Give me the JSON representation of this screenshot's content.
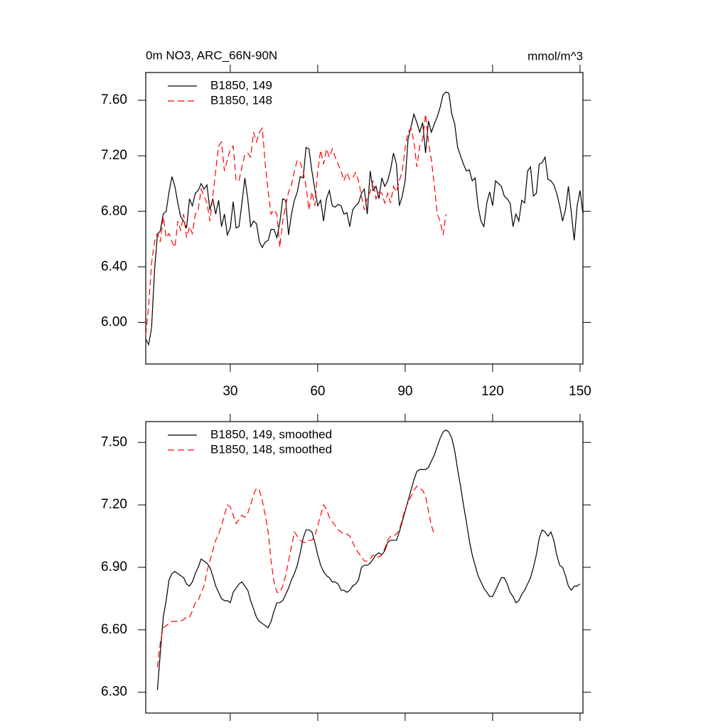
{
  "chart_data": [
    {
      "type": "line",
      "title": "0m NO3, ARC_66N-90N",
      "units": "mmol/m^3",
      "xlim": [
        1,
        151
      ],
      "xticks": [
        30,
        60,
        90,
        120,
        150
      ],
      "xtick_labels": true,
      "ylim": [
        5.7,
        7.8
      ],
      "yticks": [
        {
          "value": 6.0,
          "label": "6.00"
        },
        {
          "value": 6.4,
          "label": "6.40"
        },
        {
          "value": 6.8,
          "label": "6.80"
        },
        {
          "value": 7.2,
          "label": "7.20"
        },
        {
          "value": 7.6,
          "label": "7.60"
        }
      ],
      "grid": false,
      "legend": "upper left",
      "x": [
        1,
        2,
        3,
        4,
        5,
        6,
        7,
        8,
        9,
        10,
        11,
        12,
        13,
        14,
        15,
        16,
        17,
        18,
        19,
        20,
        21,
        22,
        23,
        24,
        25,
        26,
        27,
        28,
        29,
        30,
        31,
        32,
        33,
        34,
        35,
        36,
        37,
        38,
        39,
        40,
        41,
        42,
        43,
        44,
        45,
        46,
        47,
        48,
        49,
        50,
        51,
        52,
        53,
        54,
        55,
        56,
        57,
        58,
        59,
        60,
        61,
        62,
        63,
        64,
        65,
        66,
        67,
        68,
        69,
        70,
        71,
        72,
        73,
        74,
        75,
        76,
        77,
        78,
        79,
        80,
        81,
        82,
        83,
        84,
        85,
        86,
        87,
        88,
        89,
        90,
        91,
        92,
        93,
        94,
        95,
        96,
        97,
        98,
        99,
        100,
        101,
        102,
        103,
        104,
        105,
        106,
        107,
        108,
        109,
        110,
        111,
        112,
        113,
        114,
        115,
        116,
        117,
        118,
        119,
        120,
        121,
        122,
        123,
        124,
        125,
        126,
        127,
        128,
        129,
        130,
        131,
        132,
        133,
        134,
        135,
        136,
        137,
        138,
        139,
        140,
        141,
        142,
        143,
        144,
        145,
        146,
        147,
        148,
        149,
        150,
        151
      ],
      "series": [
        {
          "name": "B1850, 149",
          "color": "#000000",
          "line_style": "solid",
          "values": [
            5.88,
            5.84,
            5.96,
            6.37,
            6.63,
            6.66,
            6.78,
            6.8,
            6.94,
            7.05,
            6.98,
            6.86,
            6.76,
            6.73,
            6.68,
            6.89,
            6.84,
            6.93,
            6.95,
            7.0,
            6.96,
            6.99,
            6.81,
            6.89,
            6.78,
            6.88,
            6.69,
            6.78,
            6.63,
            6.68,
            6.87,
            6.68,
            6.69,
            6.86,
            7.04,
            6.89,
            6.69,
            6.73,
            6.71,
            6.58,
            6.54,
            6.58,
            6.59,
            6.67,
            6.67,
            6.61,
            6.72,
            6.89,
            6.88,
            6.63,
            6.78,
            6.88,
            6.94,
            7.05,
            7.04,
            7.26,
            7.25,
            7.09,
            6.96,
            6.84,
            6.88,
            6.73,
            6.89,
            6.95,
            6.84,
            6.83,
            6.85,
            6.84,
            6.78,
            6.79,
            6.69,
            6.81,
            6.84,
            6.86,
            6.93,
            6.96,
            6.78,
            7.09,
            6.95,
            6.98,
            6.89,
            7.04,
            6.98,
            7.02,
            7.1,
            7.22,
            7.14,
            6.84,
            6.91,
            7.02,
            7.32,
            7.41,
            7.5,
            7.44,
            7.37,
            7.44,
            7.22,
            7.45,
            7.37,
            7.43,
            7.48,
            7.55,
            7.64,
            7.66,
            7.65,
            7.5,
            7.43,
            7.26,
            7.2,
            7.14,
            7.09,
            7.1,
            7.02,
            7.04,
            6.84,
            6.73,
            6.69,
            6.86,
            6.94,
            6.84,
            7.02,
            7.0,
            6.98,
            6.91,
            6.89,
            6.86,
            6.69,
            6.78,
            6.73,
            6.88,
            6.86,
            7.09,
            7.12,
            6.91,
            6.93,
            7.14,
            7.15,
            7.19,
            7.03,
            7.02,
            6.99,
            6.93,
            6.84,
            6.73,
            6.81,
            6.98,
            6.79,
            6.59,
            6.84,
            6.95,
            6.78
          ]
        },
        {
          "name": "B1850, 148",
          "color": "#ff0000",
          "line_style": "dashed",
          "values": [
            5.91,
            6.12,
            6.43,
            6.58,
            6.64,
            6.58,
            6.76,
            6.61,
            6.64,
            6.58,
            6.54,
            6.73,
            6.66,
            6.78,
            6.61,
            6.69,
            6.64,
            6.78,
            6.81,
            6.96,
            6.91,
            6.86,
            6.73,
            6.91,
            7.09,
            7.27,
            7.3,
            7.09,
            7.17,
            7.25,
            7.27,
            7.02,
            7.02,
            7.12,
            7.21,
            7.22,
            7.19,
            7.37,
            7.3,
            7.37,
            7.4,
            7.14,
            6.94,
            6.78,
            6.81,
            6.78,
            6.54,
            6.73,
            6.84,
            6.94,
            6.99,
            7.09,
            7.17,
            7.15,
            7.09,
            6.98,
            6.81,
            6.94,
            6.84,
            7.09,
            7.24,
            7.14,
            7.25,
            7.19,
            7.25,
            7.19,
            7.14,
            7.09,
            7.02,
            7.08,
            7.03,
            7.04,
            7.08,
            7.02,
            6.91,
            6.81,
            6.9,
            6.94,
            7.02,
            6.89,
            6.94,
            6.93,
            6.86,
            6.93,
            6.86,
            6.98,
            6.94,
            7.02,
            7.09,
            7.26,
            7.37,
            7.4,
            7.3,
            7.12,
            7.27,
            7.32,
            7.5,
            7.3,
            7.17,
            6.99,
            6.78,
            6.73,
            6.63,
            6.78,
            null,
            null,
            null,
            null,
            null,
            null,
            null,
            null,
            null,
            null,
            null,
            null,
            null,
            null,
            null,
            null,
            null,
            null,
            null,
            null,
            null,
            null,
            null,
            null,
            null,
            null,
            null,
            null,
            null,
            null,
            null,
            null,
            null,
            null,
            null,
            null,
            null,
            null,
            null,
            null,
            null,
            null,
            null,
            null,
            null,
            null,
            null
          ]
        }
      ]
    },
    {
      "type": "line",
      "xlim": [
        1,
        151
      ],
      "xticks": [
        30,
        60,
        90,
        120,
        150
      ],
      "xtick_labels": false,
      "ylim": [
        6.2,
        7.6
      ],
      "yticks": [
        {
          "value": 6.3,
          "label": "6.30"
        },
        {
          "value": 6.6,
          "label": "6.60"
        },
        {
          "value": 6.9,
          "label": "6.90"
        },
        {
          "value": 7.2,
          "label": "7.20"
        },
        {
          "value": 7.5,
          "label": "7.50"
        }
      ],
      "grid": false,
      "legend": "upper left",
      "x": [
        1,
        2,
        3,
        4,
        5,
        6,
        7,
        8,
        9,
        10,
        11,
        12,
        13,
        14,
        15,
        16,
        17,
        18,
        19,
        20,
        21,
        22,
        23,
        24,
        25,
        26,
        27,
        28,
        29,
        30,
        31,
        32,
        33,
        34,
        35,
        36,
        37,
        38,
        39,
        40,
        41,
        42,
        43,
        44,
        45,
        46,
        47,
        48,
        49,
        50,
        51,
        52,
        53,
        54,
        55,
        56,
        57,
        58,
        59,
        60,
        61,
        62,
        63,
        64,
        65,
        66,
        67,
        68,
        69,
        70,
        71,
        72,
        73,
        74,
        75,
        76,
        77,
        78,
        79,
        80,
        81,
        82,
        83,
        84,
        85,
        86,
        87,
        88,
        89,
        90,
        91,
        92,
        93,
        94,
        95,
        96,
        97,
        98,
        99,
        100,
        101,
        102,
        103,
        104,
        105,
        106,
        107,
        108,
        109,
        110,
        111,
        112,
        113,
        114,
        115,
        116,
        117,
        118,
        119,
        120,
        121,
        122,
        123,
        124,
        125,
        126,
        127,
        128,
        129,
        130,
        131,
        132,
        133,
        134,
        135,
        136,
        137,
        138,
        139,
        140,
        141,
        142,
        143,
        144,
        145,
        146,
        147,
        148,
        149,
        150,
        151
      ],
      "series": [
        {
          "name": "B1850, 149, smoothed",
          "color": "#000000",
          "line_style": "solid",
          "values": [
            null,
            null,
            null,
            null,
            6.31,
            6.49,
            6.66,
            6.74,
            6.84,
            6.87,
            6.88,
            6.87,
            6.86,
            6.85,
            6.82,
            6.81,
            6.83,
            6.87,
            6.9,
            6.94,
            6.93,
            6.92,
            6.9,
            6.86,
            6.81,
            6.78,
            6.75,
            6.74,
            6.74,
            6.73,
            6.78,
            6.8,
            6.82,
            6.83,
            6.81,
            6.79,
            6.74,
            6.7,
            6.66,
            6.64,
            6.63,
            6.62,
            6.61,
            6.64,
            6.69,
            6.73,
            6.73,
            6.74,
            6.77,
            6.8,
            6.84,
            6.87,
            6.91,
            6.97,
            7.04,
            7.08,
            7.08,
            7.07,
            7.02,
            6.96,
            6.91,
            6.88,
            6.86,
            6.85,
            6.83,
            6.83,
            6.82,
            6.79,
            6.79,
            6.78,
            6.79,
            6.81,
            6.82,
            6.84,
            6.9,
            6.91,
            6.91,
            6.92,
            6.94,
            6.96,
            6.97,
            6.96,
            6.98,
            7.02,
            7.03,
            7.03,
            7.03,
            7.07,
            7.12,
            7.17,
            7.22,
            7.27,
            7.32,
            7.36,
            7.37,
            7.37,
            7.37,
            7.38,
            7.41,
            7.44,
            7.48,
            7.52,
            7.55,
            7.56,
            7.55,
            7.52,
            7.46,
            7.37,
            7.29,
            7.2,
            7.12,
            7.03,
            6.96,
            6.91,
            6.86,
            6.83,
            6.8,
            6.78,
            6.76,
            6.76,
            6.79,
            6.82,
            6.85,
            6.85,
            6.82,
            6.78,
            6.76,
            6.73,
            6.74,
            6.77,
            6.79,
            6.82,
            6.85,
            6.9,
            6.96,
            7.04,
            7.08,
            7.07,
            7.05,
            7.07,
            7.03,
            6.96,
            6.91,
            6.9,
            6.86,
            6.81,
            6.79,
            6.81,
            6.81,
            6.82,
            null
          ]
        },
        {
          "name": "B1850, 148, smoothed",
          "color": "#ff0000",
          "line_style": "dashed",
          "values": [
            null,
            null,
            null,
            null,
            6.42,
            6.54,
            6.61,
            6.62,
            6.63,
            6.64,
            6.64,
            6.64,
            6.64,
            6.65,
            6.66,
            6.66,
            6.69,
            6.73,
            6.74,
            6.78,
            6.81,
            6.88,
            6.93,
            6.98,
            7.03,
            7.06,
            7.1,
            7.15,
            7.2,
            7.19,
            7.15,
            7.11,
            7.13,
            7.15,
            7.14,
            7.16,
            7.2,
            7.25,
            7.28,
            7.27,
            7.22,
            7.15,
            7.07,
            6.93,
            6.83,
            6.78,
            6.78,
            6.81,
            6.86,
            6.93,
            7.0,
            7.07,
            7.05,
            7.03,
            7.02,
            7.02,
            7.03,
            7.03,
            7.05,
            7.1,
            7.15,
            7.2,
            7.18,
            7.14,
            7.12,
            7.1,
            7.08,
            7.07,
            7.06,
            7.06,
            7.05,
            7.02,
            6.99,
            6.97,
            6.95,
            6.93,
            6.93,
            6.94,
            6.96,
            6.95,
            6.95,
            6.96,
            6.99,
            7.03,
            7.05,
            7.05,
            7.06,
            7.08,
            7.13,
            7.18,
            7.21,
            7.24,
            7.27,
            7.29,
            7.28,
            7.27,
            7.24,
            7.17,
            7.1,
            7.06,
            null,
            null,
            null,
            null,
            null,
            null,
            null,
            null,
            null,
            null,
            null,
            null,
            null,
            null,
            null,
            null,
            null,
            null,
            null,
            null,
            null,
            null,
            null,
            null,
            null,
            null,
            null,
            null,
            null,
            null,
            null,
            null,
            null,
            null,
            null,
            null,
            null,
            null,
            null,
            null,
            null,
            null,
            null,
            null,
            null,
            null,
            null,
            null,
            null,
            null,
            null
          ]
        }
      ]
    }
  ]
}
